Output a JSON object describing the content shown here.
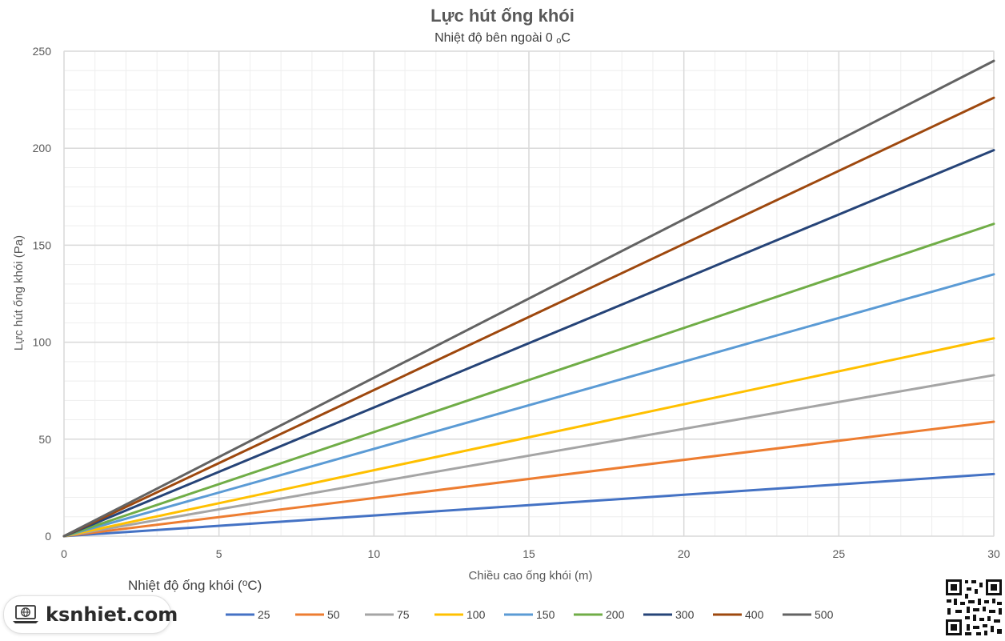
{
  "chart_data": {
    "type": "line",
    "title": "Lực hút ống khói",
    "subtitle": "Nhiệt độ bên ngoài 0 oC",
    "xlabel": "Chiều cao ống khói (m)",
    "ylabel": "Lực hút ống khói (Pa)",
    "xlim": [
      0,
      30
    ],
    "ylim": [
      0,
      250
    ],
    "xticks": [
      0,
      5,
      10,
      15,
      20,
      25,
      30
    ],
    "yticks": [
      0,
      50,
      100,
      150,
      200,
      250
    ],
    "grid": true,
    "legend_title": "Nhiệt độ ống khói (oC)",
    "legend_position": "bottom",
    "series": [
      {
        "name": "25",
        "color": "#4472c4",
        "points": [
          [
            0,
            0
          ],
          [
            30,
            32
          ]
        ]
      },
      {
        "name": "50",
        "color": "#ed7d31",
        "points": [
          [
            0,
            0
          ],
          [
            30,
            59
          ]
        ]
      },
      {
        "name": "75",
        "color": "#a5a5a5",
        "points": [
          [
            0,
            0
          ],
          [
            30,
            83
          ]
        ]
      },
      {
        "name": "100",
        "color": "#ffc000",
        "points": [
          [
            0,
            0
          ],
          [
            30,
            102
          ]
        ]
      },
      {
        "name": "150",
        "color": "#5b9bd5",
        "points": [
          [
            0,
            0
          ],
          [
            30,
            135
          ]
        ]
      },
      {
        "name": "200",
        "color": "#70ad47",
        "points": [
          [
            0,
            0
          ],
          [
            30,
            161
          ]
        ]
      },
      {
        "name": "300",
        "color": "#264478",
        "points": [
          [
            0,
            0
          ],
          [
            30,
            199
          ]
        ]
      },
      {
        "name": "400",
        "color": "#9e480e",
        "points": [
          [
            0,
            0
          ],
          [
            30,
            226
          ]
        ]
      },
      {
        "name": "500",
        "color": "#636363",
        "points": [
          [
            0,
            0
          ],
          [
            30,
            245
          ]
        ]
      }
    ]
  },
  "brand": {
    "name": "ksnhiet.com",
    "icon": "laptop-globe-icon"
  },
  "qr": {
    "icon": "qr-code-icon"
  }
}
